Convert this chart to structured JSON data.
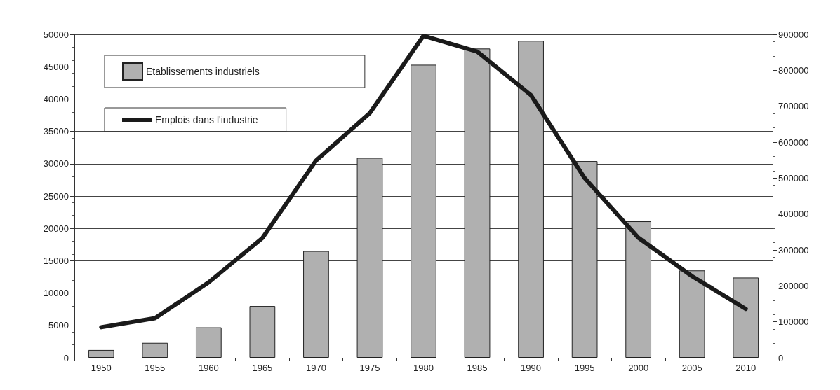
{
  "chart_data": {
    "type": "bar",
    "categories": [
      "1950",
      "1955",
      "1960",
      "1965",
      "1970",
      "1975",
      "1980",
      "1985",
      "1990",
      "1995",
      "2000",
      "2005",
      "2010"
    ],
    "series": [
      {
        "name": "Etablissements industriels",
        "color": "#b0b0b0",
        "values": [
          1200,
          2300,
          4700,
          8000,
          16500,
          30900,
          45300,
          47800,
          49000,
          30400,
          21100,
          13500,
          12400
        ]
      },
      {
        "name": "Emplois dans l'industrie",
        "type": "line",
        "axis": "y2",
        "color": "#1a1a1a",
        "values": [
          85000,
          110000,
          210000,
          333000,
          549000,
          681000,
          896000,
          852000,
          731000,
          500000,
          334000,
          227000,
          136000
        ]
      }
    ],
    "ylim": [
      0,
      50000
    ],
    "yticks": [
      0,
      5000,
      10000,
      15000,
      20000,
      25000,
      30000,
      35000,
      40000,
      45000,
      50000
    ],
    "y2lim": [
      0,
      900000
    ],
    "y2ticks": [
      0,
      100000,
      200000,
      300000,
      400000,
      500000,
      600000,
      700000,
      800000,
      900000
    ],
    "grid": "y",
    "legend": "top left",
    "marker": "none",
    "line_style": "solid"
  }
}
